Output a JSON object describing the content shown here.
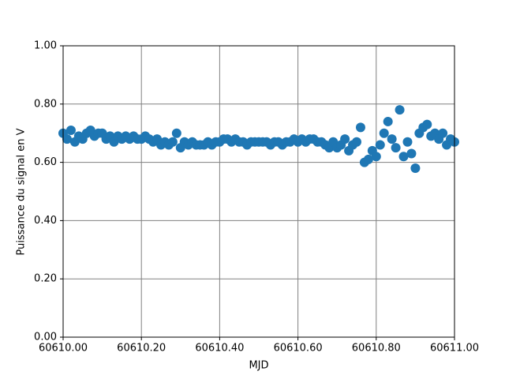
{
  "chart_data": {
    "type": "scatter",
    "xlabel": "MJD",
    "ylabel": "Puissance du signal en V",
    "x": [
      60610.0,
      60610.01,
      60610.02,
      60610.03,
      60610.04,
      60610.05,
      60610.06,
      60610.07,
      60610.08,
      60610.09,
      60610.1,
      60610.11,
      60610.12,
      60610.13,
      60610.14,
      60610.15,
      60610.16,
      60610.17,
      60610.18,
      60610.19,
      60610.2,
      60610.21,
      60610.22,
      60610.23,
      60610.24,
      60610.25,
      60610.26,
      60610.27,
      60610.28,
      60610.29,
      60610.3,
      60610.31,
      60610.32,
      60610.33,
      60610.34,
      60610.35,
      60610.36,
      60610.37,
      60610.38,
      60610.39,
      60610.4,
      60610.41,
      60610.42,
      60610.43,
      60610.44,
      60610.45,
      60610.46,
      60610.47,
      60610.48,
      60610.49,
      60610.5,
      60610.51,
      60610.52,
      60610.53,
      60610.54,
      60610.55,
      60610.56,
      60610.57,
      60610.58,
      60610.59,
      60610.6,
      60610.61,
      60610.62,
      60610.63,
      60610.64,
      60610.65,
      60610.66,
      60610.67,
      60610.68,
      60610.69,
      60610.7,
      60610.71,
      60610.72,
      60610.73,
      60610.74,
      60610.75,
      60610.76,
      60610.77,
      60610.78,
      60610.79,
      60610.8,
      60610.81,
      60610.82,
      60610.83,
      60610.84,
      60610.85,
      60610.86,
      60610.87,
      60610.88,
      60610.89,
      60610.9,
      60610.91,
      60610.92,
      60610.93,
      60610.94,
      60610.95,
      60610.96,
      60610.97,
      60610.98,
      60610.99,
      60611.0
    ],
    "values": [
      0.7,
      0.68,
      0.71,
      0.67,
      0.69,
      0.68,
      0.7,
      0.71,
      0.69,
      0.7,
      0.7,
      0.68,
      0.69,
      0.67,
      0.69,
      0.68,
      0.69,
      0.68,
      0.69,
      0.68,
      0.68,
      0.69,
      0.68,
      0.67,
      0.68,
      0.66,
      0.67,
      0.66,
      0.67,
      0.7,
      0.65,
      0.67,
      0.66,
      0.67,
      0.66,
      0.66,
      0.66,
      0.67,
      0.66,
      0.67,
      0.67,
      0.68,
      0.68,
      0.67,
      0.68,
      0.67,
      0.67,
      0.66,
      0.67,
      0.67,
      0.67,
      0.67,
      0.67,
      0.66,
      0.67,
      0.67,
      0.66,
      0.67,
      0.67,
      0.68,
      0.67,
      0.68,
      0.67,
      0.68,
      0.68,
      0.67,
      0.67,
      0.66,
      0.65,
      0.67,
      0.65,
      0.66,
      0.68,
      0.64,
      0.66,
      0.67,
      0.72,
      0.6,
      0.61,
      0.64,
      0.62,
      0.66,
      0.7,
      0.74,
      0.68,
      0.65,
      0.78,
      0.62,
      0.67,
      0.63,
      0.58,
      0.7,
      0.72,
      0.73,
      0.69,
      0.7,
      0.68,
      0.7,
      0.66,
      0.68,
      0.67
    ],
    "color": "#1f77b4",
    "xlim": [
      60610,
      60611
    ],
    "xticks": [
      {
        "value": 60610,
        "label": "60610.00"
      },
      {
        "value": 60610.2,
        "label": "60610.20"
      },
      {
        "value": 60610.4,
        "label": "60610.40"
      },
      {
        "value": 60610.6,
        "label": "60610.60"
      },
      {
        "value": 60610.8,
        "label": "60610.80"
      },
      {
        "value": 60611,
        "label": "60611.00"
      }
    ],
    "ylim": [
      0,
      1
    ],
    "yticks": [
      {
        "value": 0,
        "label": "0.00"
      },
      {
        "value": 0.2,
        "label": "0.20"
      },
      {
        "value": 0.4,
        "label": "0.40"
      },
      {
        "value": 0.6,
        "label": "0.60"
      },
      {
        "value": 0.8,
        "label": "0.80"
      },
      {
        "value": 1,
        "label": "1.00"
      }
    ],
    "grid": true
  }
}
